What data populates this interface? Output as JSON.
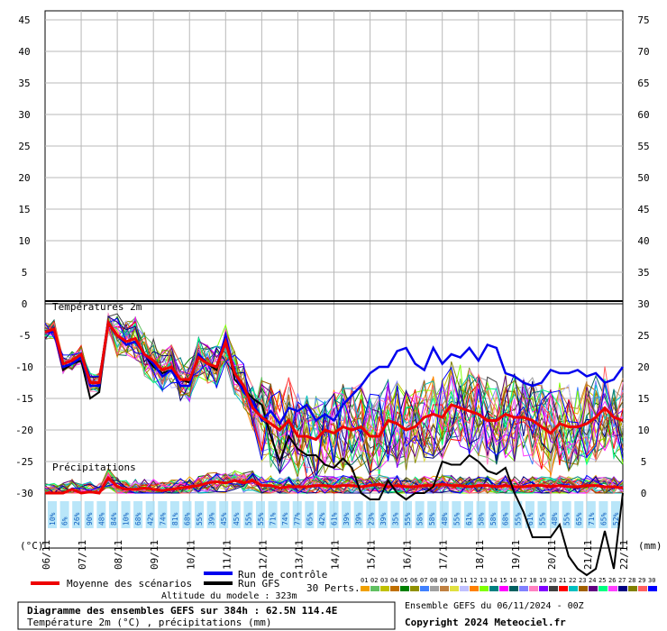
{
  "chart_data": {
    "type": "line",
    "title": "Diagramme des ensembles GEFS sur 384h : 62.5N 114.4E",
    "subtitle": "Température 2m (°C) , précipitations (mm)",
    "left_axis": {
      "label": "(°C)",
      "ticks": [
        "45",
        "40",
        "35",
        "30",
        "25",
        "20",
        "15",
        "10",
        "5",
        "0",
        "-5",
        "-10",
        "-15",
        "-20",
        "-25",
        "-30"
      ],
      "ylim": [
        -30,
        0
      ]
    },
    "right_axis": {
      "label": "(mm)",
      "ticks": [
        "75",
        "70",
        "65",
        "60",
        "55",
        "50",
        "45",
        "40",
        "35",
        "30",
        "25",
        "20",
        "15",
        "10",
        "5",
        "0"
      ]
    },
    "x_ticks": [
      "06/11",
      "07/11",
      "08/11",
      "09/11",
      "10/11",
      "11/11",
      "12/11",
      "13/11",
      "14/11",
      "15/11",
      "16/11",
      "17/11",
      "18/11",
      "19/11",
      "20/11",
      "21/11",
      "22/11"
    ],
    "panel_labels": {
      "temperature": "Températures 2m",
      "precip": "Précipitations"
    },
    "legend": {
      "mean": "Moyenne des scénarios",
      "control": "Run de contrôle",
      "gfs": "Run GFS",
      "perts": "30 Perts."
    },
    "altitude": "Altitude du modele : 323m",
    "ensemble_info": "Ensemble GEFS du 06/11/2024 - 00Z",
    "copyright": "Copyright 2024 Meteociel.fr",
    "pert_numbers": [
      "01",
      "02",
      "03",
      "04",
      "05",
      "06",
      "07",
      "08",
      "09",
      "10",
      "11",
      "12",
      "13",
      "14",
      "15",
      "16",
      "17",
      "18",
      "19",
      "20",
      "21",
      "22",
      "23",
      "24",
      "25",
      "26",
      "27",
      "28",
      "29",
      "30"
    ],
    "pert_colors": [
      "#f0a000",
      "#60c060",
      "#c0c000",
      "#c07000",
      "#008000",
      "#909000",
      "#4080ff",
      "#a0a0a0",
      "#c08040",
      "#e0e040",
      "#c0c0ff",
      "#ff8000",
      "#80ff00",
      "#008080",
      "#ff00ff",
      "#006060",
      "#8080ff",
      "#ff80c0",
      "#8000ff",
      "#404040",
      "#ff0000",
      "#00c0c0",
      "#a06000",
      "#600080",
      "#00ff80",
      "#ff40ff",
      "#000080",
      "#808000",
      "#ff6060",
      "#0000ff"
    ],
    "precip_probabilities": [
      "10%",
      "6%",
      "26%",
      "90%",
      "48%",
      "84%",
      "10%",
      "68%",
      "42%",
      "74%",
      "81%",
      "68%",
      "55%",
      "39%",
      "45%",
      "45%",
      "55%",
      "55%",
      "71%",
      "74%",
      "77%",
      "65%",
      "42%",
      "61%",
      "39%",
      "39%",
      "23%",
      "39%",
      "35%",
      "55%",
      "58%",
      "58%",
      "48%",
      "55%",
      "61%",
      "58%",
      "58%",
      "68%",
      "55%",
      "61%",
      "55%",
      "48%",
      "55%",
      "65%",
      "71%",
      "65%",
      "52%"
    ],
    "mean_temp": {
      "x": [
        0,
        0.25,
        0.5,
        0.75,
        1,
        1.25,
        1.5,
        1.75,
        2,
        2.25,
        2.5,
        2.75,
        3,
        3.25,
        3.5,
        3.75,
        4,
        4.25,
        4.5,
        4.75,
        5,
        5.25,
        5.5,
        5.75,
        6,
        6.25,
        6.5,
        6.75,
        7,
        7.25,
        7.5,
        7.75,
        8,
        8.25,
        8.5,
        8.75,
        9,
        9.25,
        9.5,
        9.75,
        10,
        10.25,
        10.5,
        10.75,
        11,
        11.25,
        11.5,
        11.75,
        12,
        12.25,
        12.5,
        12.75,
        13,
        13.25,
        13.5,
        13.75,
        14,
        14.25,
        14.5,
        14.75,
        15,
        15.25,
        15.5,
        15.75,
        16
      ],
      "values": [
        -4.5,
        -4,
        -9.5,
        -9,
        -8,
        -12.5,
        -12.5,
        -3,
        -5,
        -6,
        -5.5,
        -8,
        -9,
        -10.5,
        -10,
        -12,
        -12,
        -8.5,
        -9.5,
        -10,
        -6,
        -11,
        -13,
        -16.5,
        -18,
        -19,
        -20,
        -18.5,
        -21,
        -21,
        -21.5,
        -20,
        -20.5,
        -19.5,
        -20,
        -19.5,
        -21,
        -21,
        -18.5,
        -19,
        -20,
        -19.5,
        -18,
        -17.5,
        -18,
        -16,
        -16.5,
        -17,
        -17.5,
        -18.5,
        -18.5,
        -17.5,
        -18,
        -18,
        -18.5,
        -19.5,
        -20.5,
        -19,
        -19.5,
        -19.5,
        -19,
        -18,
        -16.5,
        -18,
        -18.5
      ]
    },
    "control_temp": {
      "x": [
        0,
        0.25,
        0.5,
        0.75,
        1,
        1.25,
        1.5,
        1.75,
        2,
        2.25,
        2.5,
        2.75,
        3,
        3.25,
        3.5,
        3.75,
        4,
        4.25,
        4.5,
        4.75,
        5,
        5.25,
        5.5,
        5.75,
        6,
        6.25,
        6.5,
        6.75,
        7,
        7.25,
        7.5,
        7.75,
        8,
        8.25,
        8.5,
        8.75,
        9,
        9.25,
        9.5,
        9.75,
        10,
        10.25,
        10.5,
        10.75,
        11,
        11.25,
        11.5,
        11.75,
        12,
        12.25,
        12.5,
        12.75,
        13,
        13.25,
        13.5,
        13.75,
        14,
        14.25,
        14.5,
        14.75,
        15,
        15.25,
        15.5,
        15.75,
        16
      ],
      "values": [
        -4.5,
        -4.5,
        -10,
        -9.5,
        -8.5,
        -13,
        -13,
        -3,
        -5,
        -6.5,
        -6,
        -8,
        -9.5,
        -11.5,
        -10.5,
        -13,
        -13,
        -8,
        -9.5,
        -10,
        -5,
        -11,
        -14,
        -15.5,
        -18.5,
        -17,
        -19,
        -16.5,
        -17,
        -16,
        -18.5,
        -17.5,
        -18.5,
        -16,
        -14.5,
        -13,
        -11,
        -10,
        -10,
        -7.5,
        -7,
        -9.5,
        -10.5,
        -7,
        -9.5,
        -8,
        -8.5,
        -7,
        -9,
        -6.5,
        -7,
        -11,
        -11.5,
        -12.5,
        -13,
        -12.5,
        -10.5,
        -11,
        -11,
        -10.5,
        -11.5,
        -11,
        -12.5,
        -12,
        -10
      ]
    },
    "gfs_temp": {
      "x": [
        0,
        0.25,
        0.5,
        0.75,
        1,
        1.25,
        1.5,
        1.75,
        2,
        2.25,
        2.5,
        2.75,
        3,
        3.25,
        3.5,
        3.75,
        4,
        4.25,
        4.5,
        4.75,
        5,
        5.25,
        5.5,
        5.75,
        6,
        6.25,
        6.5,
        6.75,
        7,
        7.25,
        7.5,
        7.75,
        8,
        8.25,
        8.5,
        8.75,
        9,
        9.25,
        9.5,
        9.75,
        10,
        10.25,
        10.5,
        10.75,
        11,
        11.25,
        11.5,
        11.75,
        12,
        12.25,
        12.5,
        12.75,
        13,
        13.25,
        13.5,
        13.75,
        14,
        14.25,
        14.5,
        14.75,
        15,
        15.25,
        15.5,
        15.75,
        16
      ],
      "values": [
        -4.5,
        -4.5,
        -10.5,
        -9.5,
        -9,
        -15,
        -14,
        -3,
        -5,
        -6.5,
        -6,
        -8,
        -10,
        -11,
        -10.5,
        -12,
        -12.5,
        -8,
        -9.5,
        -10.5,
        -5.5,
        -12,
        -13.5,
        -15,
        -16,
        -21,
        -25,
        -21,
        -23,
        -24,
        -24,
        -25.5,
        -26,
        -24.5,
        -26,
        -30,
        -31,
        -31,
        -28,
        -30,
        -31,
        -30,
        -30,
        -29,
        -25,
        -25.5,
        -25.5,
        -24,
        -25,
        -26.5,
        -27,
        -26,
        -30,
        -33,
        -37,
        -37,
        -37,
        -35,
        -40,
        -42,
        -43,
        -42,
        -36,
        -42,
        -30
      ]
    },
    "precip_mm": {
      "values": [
        0,
        0,
        0,
        0.3,
        0,
        0.1,
        0,
        1.2,
        0.5,
        0.3,
        0.3,
        0.4,
        0.3,
        0.2,
        0.3,
        0.4,
        0.5,
        0.6,
        0.8,
        0.9,
        0.8,
        1,
        0.8,
        1,
        0.6,
        0.6,
        0.4,
        0.5,
        0.5,
        0.5,
        0.6,
        0.6,
        0.5,
        0.6,
        0.6,
        0.5,
        0.6,
        0.7,
        0.5,
        0.6,
        0.5,
        0.5,
        0.6,
        0.6,
        0.7,
        0.6,
        0.6,
        0.5,
        0.6,
        0.6,
        0.5,
        0.6,
        0.5,
        0.5,
        0.6,
        0.6,
        0.5,
        0.6,
        0.5,
        0.5,
        0.6,
        0.6,
        0.5,
        0.5,
        0.4
      ]
    },
    "series_count": 30
  }
}
